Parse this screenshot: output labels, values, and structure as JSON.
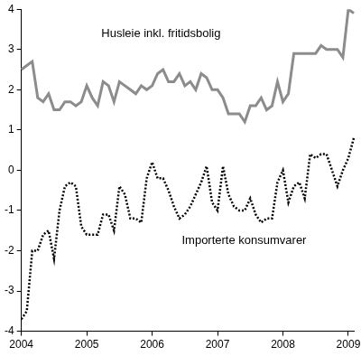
{
  "chart_data": {
    "type": "line",
    "categories": [
      "2004",
      null,
      null,
      null,
      null,
      null,
      null,
      null,
      null,
      null,
      null,
      null,
      "2005",
      null,
      null,
      null,
      null,
      null,
      null,
      null,
      null,
      null,
      null,
      null,
      "2006",
      null,
      null,
      null,
      null,
      null,
      null,
      null,
      null,
      null,
      null,
      null,
      "2007",
      null,
      null,
      null,
      null,
      null,
      null,
      null,
      null,
      null,
      null,
      null,
      "2008",
      null,
      null,
      null,
      null,
      null,
      null,
      null,
      null,
      null,
      null,
      null,
      "2009",
      null
    ],
    "series": [
      {
        "name": "Husleie inkl. fritidsbolig",
        "color": "#8c8c8c",
        "line_style": "solid",
        "values": [
          2.5,
          2.6,
          2.7,
          1.8,
          1.7,
          1.9,
          1.5,
          1.5,
          1.7,
          1.7,
          1.6,
          1.7,
          2.1,
          1.8,
          1.6,
          2.2,
          2.1,
          1.7,
          2.2,
          2.1,
          2.0,
          1.9,
          2.1,
          2.0,
          2.1,
          2.4,
          2.5,
          2.2,
          2.2,
          2.4,
          2.1,
          2.2,
          2.0,
          2.4,
          2.3,
          2.0,
          2.0,
          1.8,
          1.4,
          1.4,
          1.4,
          1.2,
          1.6,
          1.6,
          1.8,
          1.5,
          1.6,
          2.2,
          1.7,
          1.9,
          2.9,
          2.9,
          2.9,
          2.9,
          2.9,
          3.1,
          3.0,
          3.0,
          3.0,
          2.8,
          4.0,
          3.9
        ]
      },
      {
        "name": "Importerte konsumvarer",
        "color": "#000000",
        "line_style": "dotted",
        "values": [
          -3.7,
          -3.5,
          -2.0,
          -2.0,
          -1.6,
          -1.5,
          -2.2,
          -1.0,
          -0.4,
          -0.3,
          -0.4,
          -1.4,
          -1.6,
          -1.6,
          -1.6,
          -1.1,
          -1.1,
          -1.5,
          -0.4,
          -0.6,
          -1.2,
          -1.2,
          -1.3,
          -0.2,
          0.2,
          -0.2,
          -0.2,
          -0.5,
          -0.9,
          -1.2,
          -1.1,
          -0.9,
          -0.6,
          -0.3,
          0.1,
          -0.8,
          -1.0,
          0.1,
          -0.6,
          -0.9,
          -1.0,
          -1.0,
          -0.7,
          -1.1,
          -1.3,
          -1.2,
          -1.2,
          -0.3,
          0.0,
          -0.8,
          -0.4,
          -0.3,
          -0.7,
          0.4,
          0.3,
          0.4,
          0.4,
          0.0,
          -0.4,
          0.0,
          0.3,
          0.8
        ]
      }
    ],
    "ylim": [
      -4,
      4
    ],
    "yticks": [
      -4,
      -3,
      -2,
      -1,
      0,
      1,
      2,
      3,
      4
    ],
    "grid": false
  }
}
